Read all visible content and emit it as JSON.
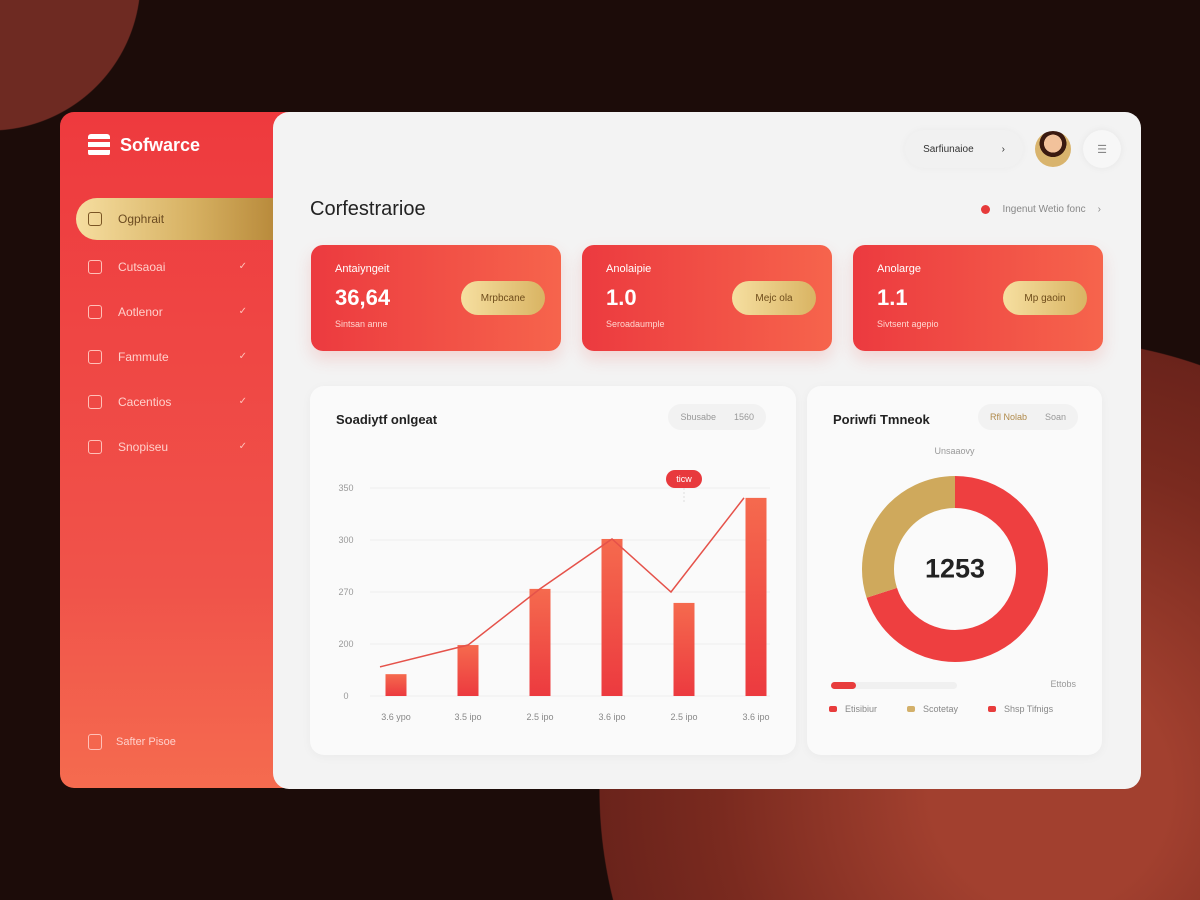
{
  "brand": {
    "name": "Sofwarce"
  },
  "sidebar": {
    "items": [
      {
        "label": "Ogphrait",
        "icon": "briefcase-icon",
        "active": true
      },
      {
        "label": "Cutsaoai",
        "icon": "lock-icon"
      },
      {
        "label": "Aotlenor",
        "icon": "alert-icon"
      },
      {
        "label": "Fammute",
        "icon": "inbox-icon"
      },
      {
        "label": "Cacentios",
        "icon": "file-icon"
      },
      {
        "label": "Snopiseu",
        "icon": "calendar-icon"
      }
    ],
    "footer": "Safter Pisoe"
  },
  "topbar": {
    "search_label": "Sarfiunaioe",
    "search_icon": "chevron-right-icon",
    "menu_icon": "menu-icon"
  },
  "page": {
    "title": "Corfestrarioe",
    "filter_label": "Ingenut Wetio fonc"
  },
  "cards": [
    {
      "label": "Antaiyngeit",
      "value": "36,64",
      "sub": "Sintsan anne",
      "button": "Mrpbcane"
    },
    {
      "label": "Anolaipie",
      "value": "1.0",
      "sub": "Seroadaumple",
      "button": "Mejc ola"
    },
    {
      "label": "Anolarge",
      "value": "1.1",
      "sub": "Sivtsent agepio",
      "button": "Mp gaoin"
    }
  ],
  "bar_panel": {
    "title": "Soadiytf onlgeat",
    "seg": [
      "Sbusabe",
      "1560"
    ],
    "tooltip": "ticw"
  },
  "donut_panel": {
    "title": "Poriwfi Tmneok",
    "seg": [
      "Rfl Nolab",
      "Soan"
    ],
    "caption": "Unsaaovy",
    "center": "1253",
    "progress": 0.2,
    "progress_label": "Ettobs",
    "legend": [
      {
        "label": "Etisibiur",
        "color": "#e83c3c"
      },
      {
        "label": "Scotetay",
        "color": "#d3b06a"
      },
      {
        "label": "Shsp Tifnigs",
        "color": "#e83c3c"
      }
    ]
  },
  "chart_data": [
    {
      "type": "bar",
      "categories": [
        "3.6 ypo",
        "3.5 ipo",
        "2.5 ipo",
        "3.6 ipo",
        "2.5 ipo",
        "3.6 ipo"
      ],
      "values": [
        42,
        98,
        206,
        302,
        179,
        381
      ],
      "line": [
        56,
        98,
        206,
        302,
        200,
        381
      ],
      "ytick_labels": [
        "0",
        "200",
        "270",
        "300",
        "350"
      ],
      "ylim": [
        0,
        400
      ],
      "grid": true,
      "color": "#ef4545"
    },
    {
      "type": "pie",
      "center_label": "1253",
      "values": [
        70,
        30
      ],
      "colors": [
        "#ee3f40",
        "#cfa95c"
      ]
    }
  ]
}
